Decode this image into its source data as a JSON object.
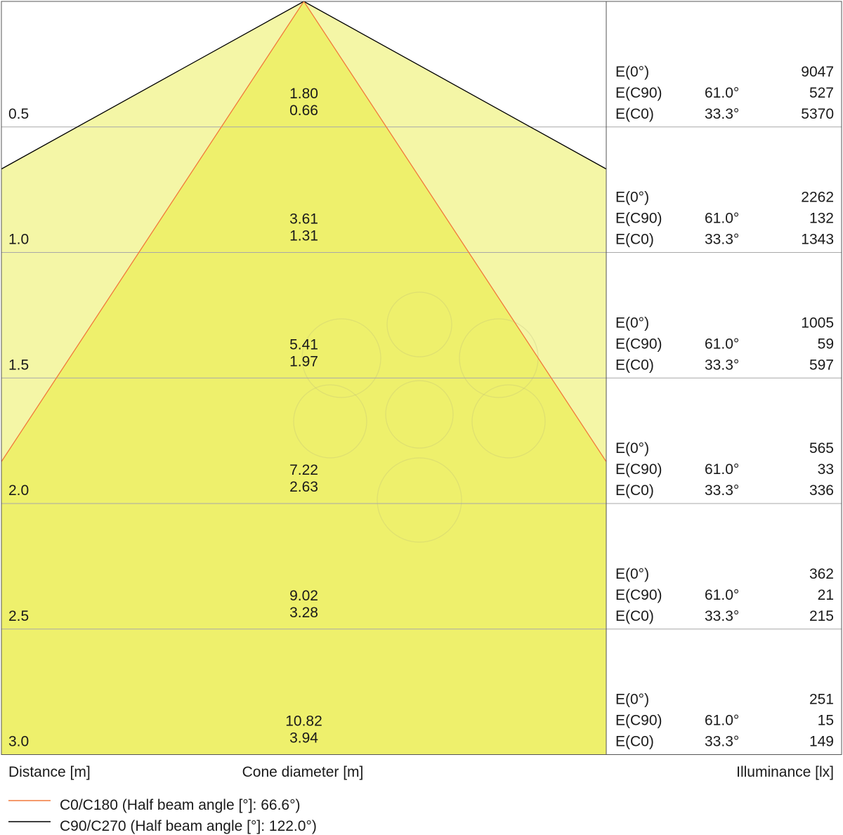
{
  "chart_data": {
    "type": "table",
    "title": "",
    "beams": [
      {
        "name": "C0/C180 (Half beam angle [°]: 66.6°)",
        "beam_angle": 66.6,
        "color": "#f2793b"
      },
      {
        "name": "C90/C270 (Half beam angle [°]: 122.0°)",
        "beam_angle": 122.0,
        "color": "#000000"
      }
    ],
    "columns": {
      "distance": "Distance [m]",
      "cone": "Cone diameter [m]",
      "illuminance": "Illuminance [lx]"
    },
    "row_labels": {
      "e0": "E(0°)",
      "ec90": "E(C90)",
      "ec0": "E(C0)"
    },
    "rows": [
      {
        "distance": "0.5",
        "cone_c90": "1.80",
        "cone_c0": "0.66",
        "e0": 9047,
        "ec90_angle": "61.0°",
        "ec90": 527,
        "ec0_angle": "33.3°",
        "ec0": 5370
      },
      {
        "distance": "1.0",
        "cone_c90": "3.61",
        "cone_c0": "1.31",
        "e0": 2262,
        "ec90_angle": "61.0°",
        "ec90": 132,
        "ec0_angle": "33.3°",
        "ec0": 1343
      },
      {
        "distance": "1.5",
        "cone_c90": "5.41",
        "cone_c0": "1.97",
        "e0": 1005,
        "ec90_angle": "61.0°",
        "ec90": 59,
        "ec0_angle": "33.3°",
        "ec0": 597
      },
      {
        "distance": "2.0",
        "cone_c90": "7.22",
        "cone_c0": "2.63",
        "e0": 565,
        "ec90_angle": "61.0°",
        "ec90": 33,
        "ec0_angle": "33.3°",
        "ec0": 336
      },
      {
        "distance": "2.5",
        "cone_c90": "9.02",
        "cone_c0": "3.28",
        "e0": 362,
        "ec90_angle": "61.0°",
        "ec90": 21,
        "ec0_angle": "33.3°",
        "ec0": 215
      },
      {
        "distance": "3.0",
        "cone_c90": "10.82",
        "cone_c0": "3.94",
        "e0": 251,
        "ec90_angle": "61.0°",
        "ec90": 15,
        "ec0_angle": "33.3°",
        "ec0": 149
      }
    ]
  },
  "colors": {
    "fill_outer": "#f4f6a6",
    "fill_inner": "#eef06c",
    "grid": "#a8a8a8",
    "frame": "#555555"
  }
}
